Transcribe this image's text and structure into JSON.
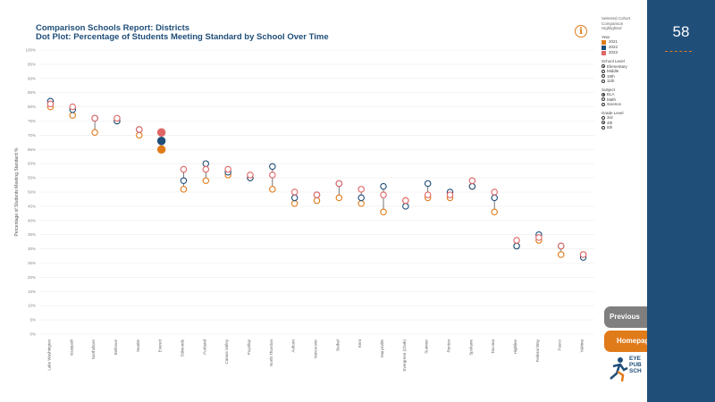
{
  "header": {
    "title": "Comparison Schools Report: Districts",
    "subtitle": "Dot Plot: Percentage of Students Meeting Standard by School Over Time"
  },
  "info_icon": "info-icon",
  "panel": {
    "selected_label": "Selected Cohort",
    "comparison_label": "Comparison",
    "highlighted_label": "Highlighted",
    "year_title": "Year",
    "years": [
      {
        "label": "2021",
        "color": "#e07b1a"
      },
      {
        "label": "2022",
        "color": "#1f4e79"
      },
      {
        "label": "2023",
        "color": "#e06666"
      }
    ],
    "school_level_title": "School Level",
    "school_levels": [
      {
        "label": "Elementary",
        "selected": true
      },
      {
        "label": "Middle",
        "selected": false
      },
      {
        "label": "10th",
        "selected": false
      },
      {
        "label": "11th",
        "selected": false
      }
    ],
    "subject_title": "Subject",
    "subjects": [
      {
        "label": "ELA",
        "selected": true
      },
      {
        "label": "Math",
        "selected": false
      },
      {
        "label": "Science",
        "selected": false
      }
    ],
    "grade_title": "Grade Level",
    "grades": [
      {
        "label": "3rd",
        "selected": false
      },
      {
        "label": "4th",
        "selected": true
      },
      {
        "label": "5th",
        "selected": false
      }
    ]
  },
  "sidebar": {
    "page_number": "58"
  },
  "nav": {
    "previous_label": "Previous",
    "home_label": "Homepage"
  },
  "logo": {
    "lines": [
      "EYE",
      "PUB",
      "SCH"
    ]
  },
  "chart_data": {
    "type": "scatter",
    "title": "Dot Plot: Percentage of Students Meeting Standard by School Over Time",
    "ylabel": "Percentage of Students Meeting Standard %",
    "ylim": [
      0,
      100
    ],
    "yticks": [
      0,
      5,
      10,
      15,
      20,
      25,
      30,
      35,
      40,
      45,
      50,
      55,
      60,
      65,
      70,
      75,
      80,
      85,
      90,
      95,
      100
    ],
    "ytick_labels": [
      "0%",
      "5%",
      "10%",
      "15%",
      "20%",
      "25%",
      "30%",
      "35%",
      "40%",
      "45%",
      "50%",
      "55%",
      "60%",
      "65%",
      "70%",
      "75%",
      "80%",
      "85%",
      "90%",
      "95%",
      "100%"
    ],
    "grid": true,
    "highlighted_category": "Everett",
    "categories": [
      "Lake Washington",
      "Issaquah",
      "Northshore",
      "Bellevue",
      "Seattle",
      "Everett",
      "Edmonds",
      "Portland",
      "Camas Valley",
      "Puyallup",
      "North Thurston",
      "Auburn",
      "Vancouver",
      "Bethel",
      "Kent",
      "Marysville",
      "Evergreen (Clark)",
      "Sumner",
      "Renton",
      "Spokane",
      "Tacoma",
      "Highline",
      "Federal Way",
      "Pasco",
      "Yakima"
    ],
    "series": [
      {
        "name": "2021",
        "color": "#e07b1a",
        "values": [
          80,
          77,
          71,
          75,
          70,
          65,
          51,
          54,
          56,
          55,
          51,
          46,
          47,
          48,
          46,
          43,
          47,
          48,
          48,
          52,
          43,
          31,
          33,
          28,
          28
        ]
      },
      {
        "name": "2022",
        "color": "#1f4e79",
        "values": [
          82,
          79,
          76,
          75,
          72,
          68,
          54,
          60,
          57,
          55,
          59,
          48,
          49,
          53,
          48,
          52,
          45,
          53,
          50,
          52,
          48,
          31,
          35,
          31,
          27
        ]
      },
      {
        "name": "2023",
        "color": "#e06666",
        "values": [
          81,
          80,
          76,
          76,
          72,
          71,
          58,
          58,
          58,
          56,
          56,
          50,
          49,
          53,
          51,
          49,
          47,
          49,
          49,
          54,
          50,
          33,
          34,
          31,
          28
        ]
      }
    ]
  }
}
